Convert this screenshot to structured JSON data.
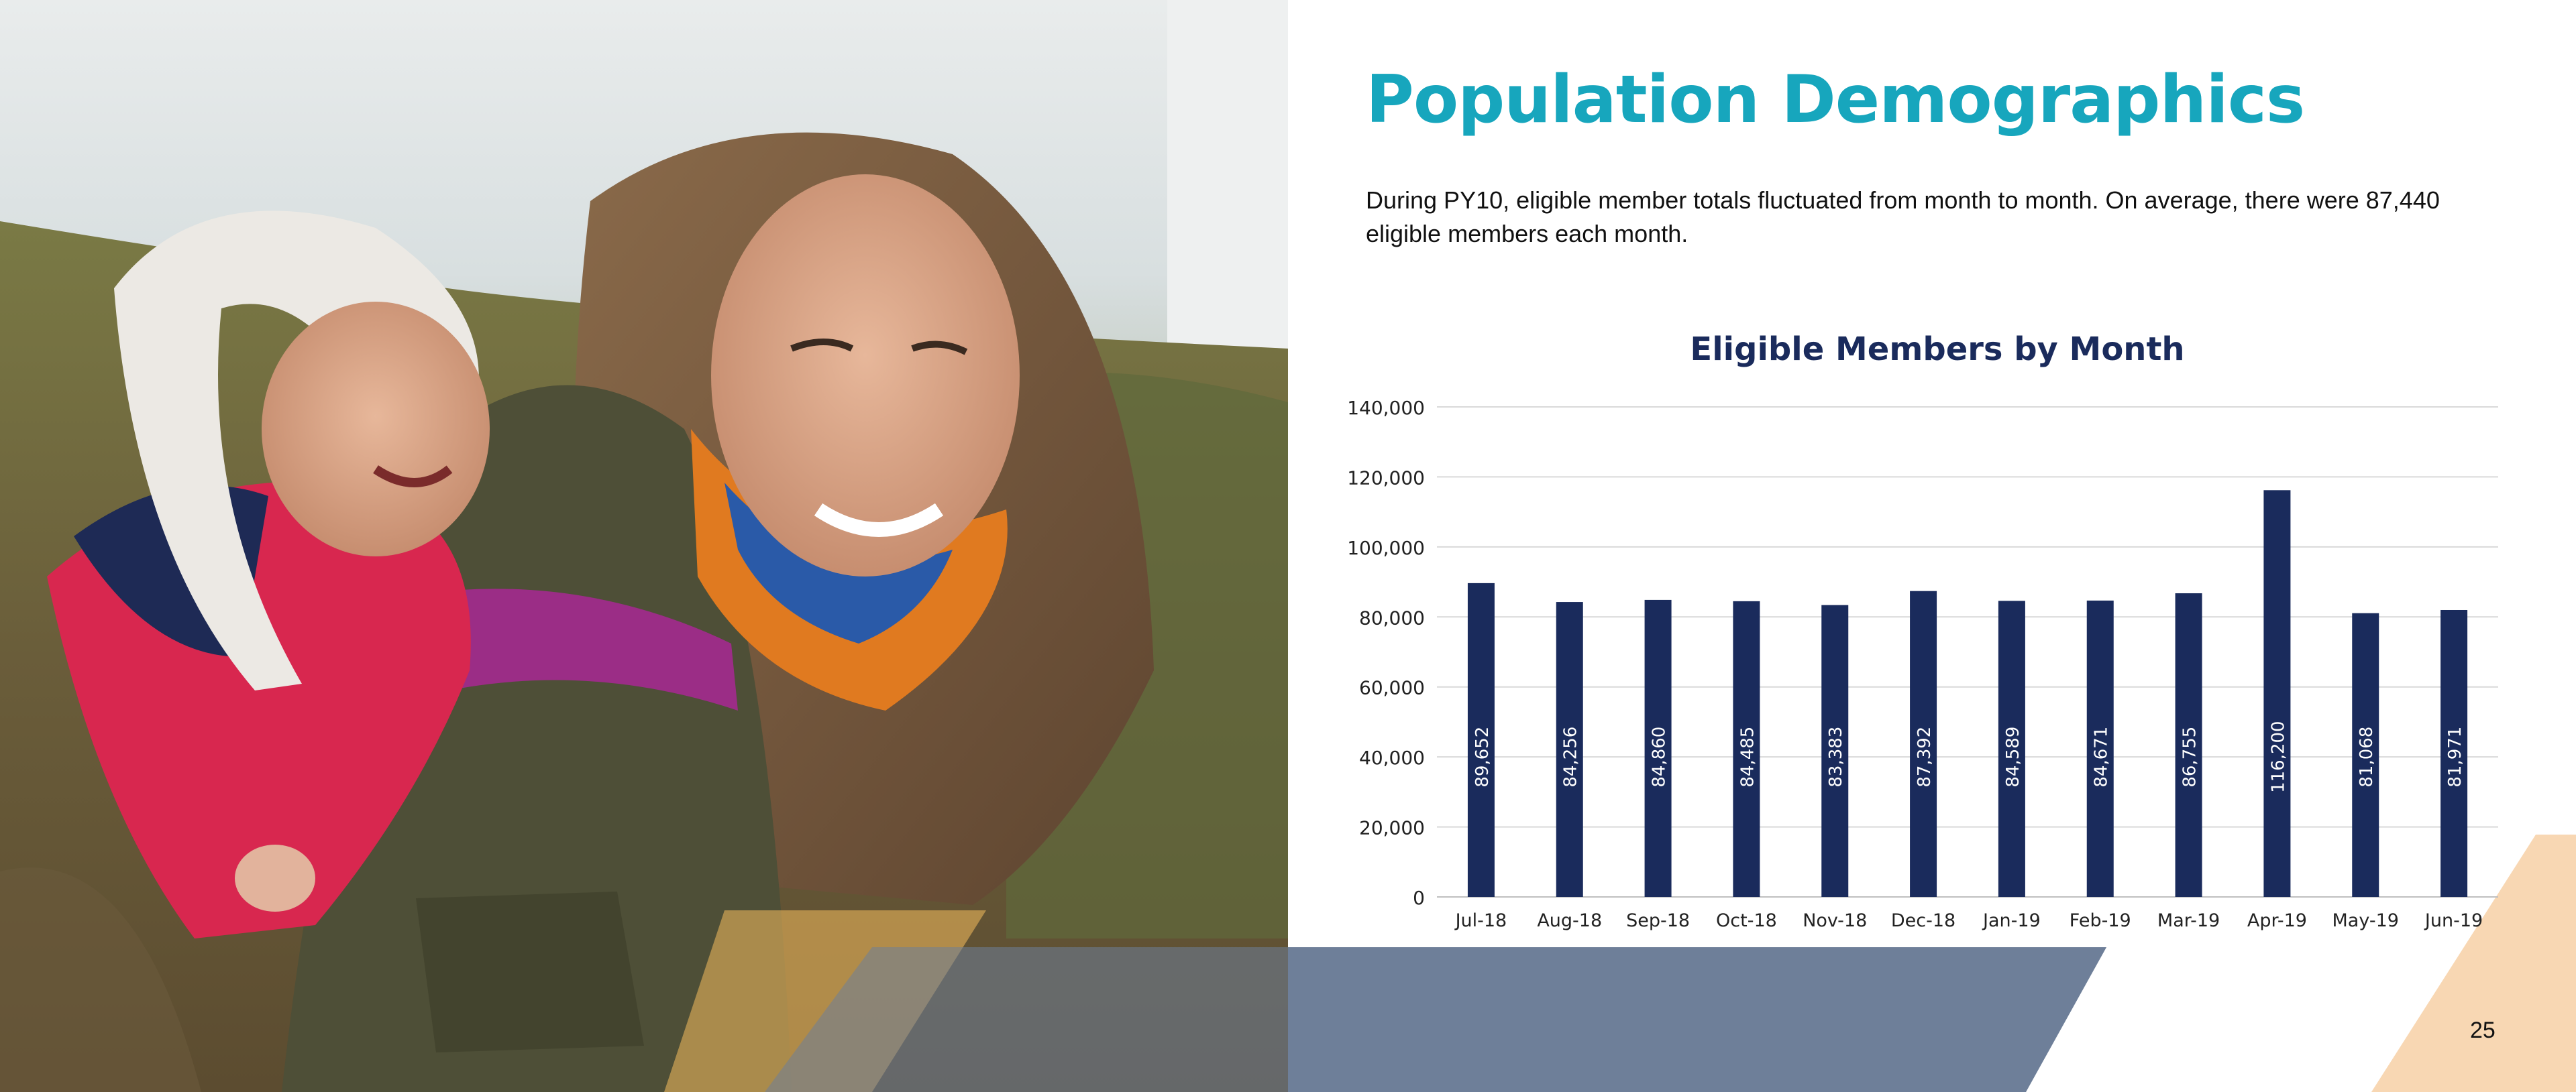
{
  "page": {
    "title": "Population Demographics",
    "intro": "During PY10, eligible member totals fluctuated from month to month. On average, there were 87,440 eligible members each month.",
    "page_number": "25"
  },
  "photo": {
    "description_icon": "mother-child-photo"
  },
  "colors": {
    "title": "#17a6bd",
    "bar": "#1a2b5c",
    "chart_title": "#1a2b5c",
    "band": "#6e7f99",
    "accent_peach": "#f8d7b3",
    "accent_gold": "#e8b45a"
  },
  "chart_data": {
    "type": "bar",
    "title": "Eligible Members by Month",
    "xlabel": "",
    "ylabel": "",
    "categories": [
      "Jul-18",
      "Aug-18",
      "Sep-18",
      "Oct-18",
      "Nov-18",
      "Dec-18",
      "Jan-19",
      "Feb-19",
      "Mar-19",
      "Apr-19",
      "May-19",
      "Jun-19"
    ],
    "values": [
      89652,
      84256,
      84860,
      84485,
      83383,
      87392,
      84589,
      84671,
      86755,
      116200,
      81068,
      81971
    ],
    "value_labels": [
      "89,652",
      "84,256",
      "84,860",
      "84,485",
      "83,383",
      "87,392",
      "84,589",
      "84,671",
      "86,755",
      "116,200",
      "81,068",
      "81,971"
    ],
    "yticks": [
      0,
      20000,
      40000,
      60000,
      80000,
      100000,
      120000,
      140000
    ],
    "ytick_labels": [
      "0",
      "20,000",
      "40,000",
      "60,000",
      "80,000",
      "100,000",
      "120,000",
      "140,000"
    ],
    "ylim": [
      0,
      140000
    ],
    "grid": true,
    "legend": "none"
  }
}
